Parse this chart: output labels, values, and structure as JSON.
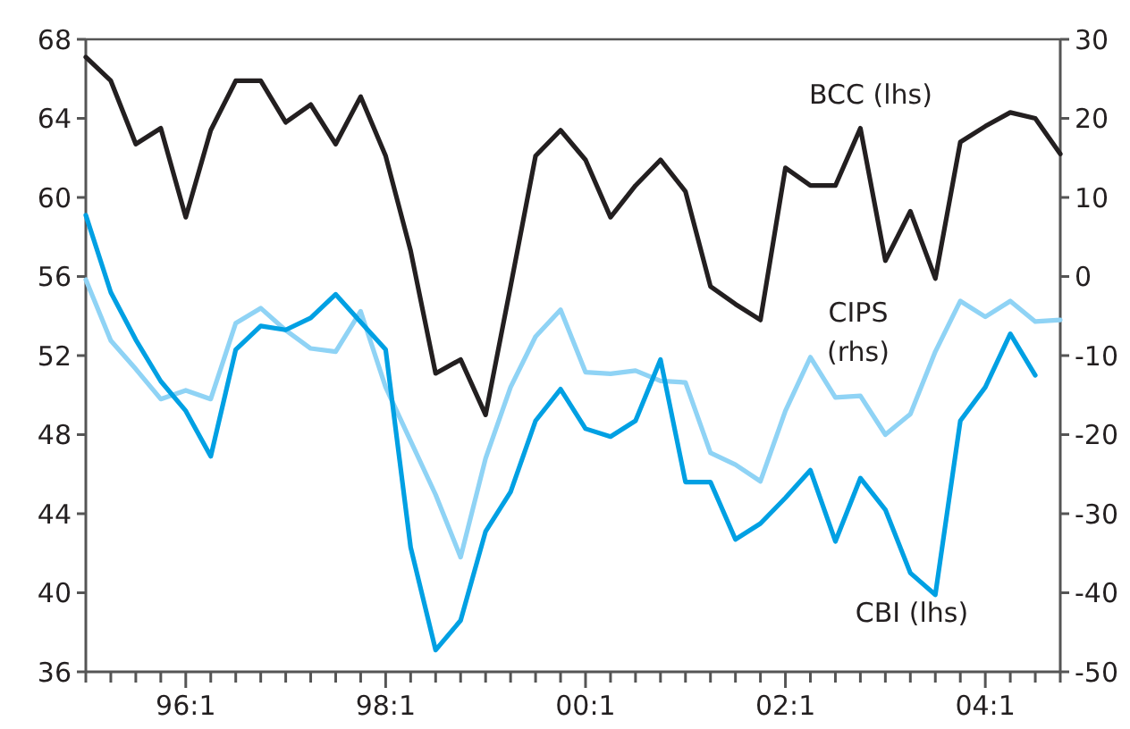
{
  "chart_data": {
    "type": "line",
    "categories": [
      null,
      null,
      null,
      null,
      "96:1",
      null,
      null,
      null,
      null,
      null,
      null,
      null,
      "98:1",
      null,
      null,
      null,
      null,
      null,
      null,
      null,
      "00:1",
      null,
      null,
      null,
      null,
      null,
      null,
      null,
      "02:1",
      null,
      null,
      null,
      null,
      null,
      null,
      null,
      "04:1",
      null,
      null,
      null
    ],
    "series": [
      {
        "name": "BCC (lhs)",
        "color": "#231f20",
        "values": [
          67.1,
          65.9,
          62.7,
          63.5,
          59.0,
          63.4,
          65.9,
          65.9,
          63.8,
          64.7,
          62.7,
          65.1,
          62.1,
          57.3,
          51.1,
          51.8,
          49.0,
          55.5,
          62.1,
          63.4,
          61.9,
          59.0,
          60.6,
          61.9,
          60.3,
          55.5,
          54.6,
          53.8,
          61.5,
          60.6,
          60.6,
          63.5,
          56.8,
          59.3,
          55.9,
          62.8,
          63.6,
          64.3,
          64.0,
          62.2
        ]
      },
      {
        "name": "CIPS (rhs)",
        "color": "#8fd3f5",
        "axis": "y2",
        "values": [
          -0.4,
          -8.1,
          -11.7,
          -15.5,
          -14.4,
          -15.5,
          -5.9,
          -4.0,
          -6.8,
          -9.1,
          -9.5,
          -4.4,
          -14.0,
          -20.8,
          -27.6,
          -35.5,
          -23.0,
          -14.0,
          -7.6,
          -4.2,
          -12.1,
          -12.3,
          -11.9,
          -13.2,
          -13.4,
          -22.3,
          -23.8,
          -25.9,
          -17.0,
          -10.2,
          -15.3,
          -15.1,
          -20.0,
          -17.4,
          -9.5,
          -3.1,
          -5.1,
          -3.1,
          -5.7,
          -5.5
        ]
      },
      {
        "name": "CBI (lhs)",
        "color": "#00a0e3",
        "values": [
          59.1,
          55.2,
          52.8,
          50.7,
          49.2,
          46.9,
          52.3,
          53.5,
          53.3,
          53.9,
          55.1,
          53.7,
          52.3,
          42.3,
          37.1,
          38.6,
          43.1,
          45.1,
          48.7,
          50.3,
          48.3,
          47.9,
          48.7,
          51.8,
          45.6,
          45.6,
          42.7,
          43.5,
          44.8,
          46.2,
          42.6,
          45.8,
          44.2,
          41.0,
          39.9,
          48.7,
          50.4,
          53.1,
          51.0,
          null
        ]
      }
    ],
    "ylim": [
      36,
      68
    ],
    "yticks": [
      36,
      40,
      44,
      48,
      52,
      56,
      60,
      64,
      68
    ],
    "y2lim": [
      -50,
      30
    ],
    "y2ticks": [
      -50,
      -40,
      -30,
      -20,
      -10,
      0,
      10,
      20,
      30
    ],
    "line_style": "solid",
    "marker": "none",
    "grid": false
  }
}
